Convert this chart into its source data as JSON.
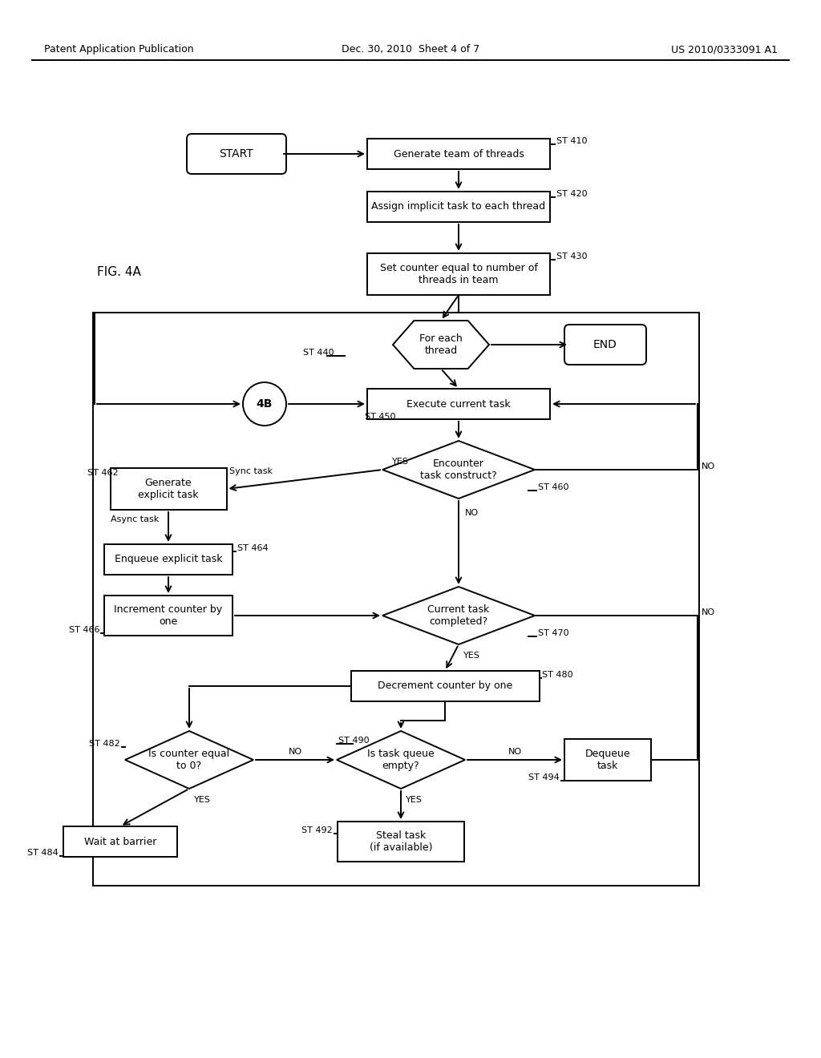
{
  "background": "#ffffff",
  "header_left": "Patent Application Publication",
  "header_center": "Dec. 30, 2010  Sheet 4 of 7",
  "header_right": "US 2010/0333091 A1",
  "fig_label": "FIG. 4A",
  "lw": 1.4,
  "fs_header": 9,
  "fs_body": 9,
  "fs_small": 8,
  "fs_label": 8
}
